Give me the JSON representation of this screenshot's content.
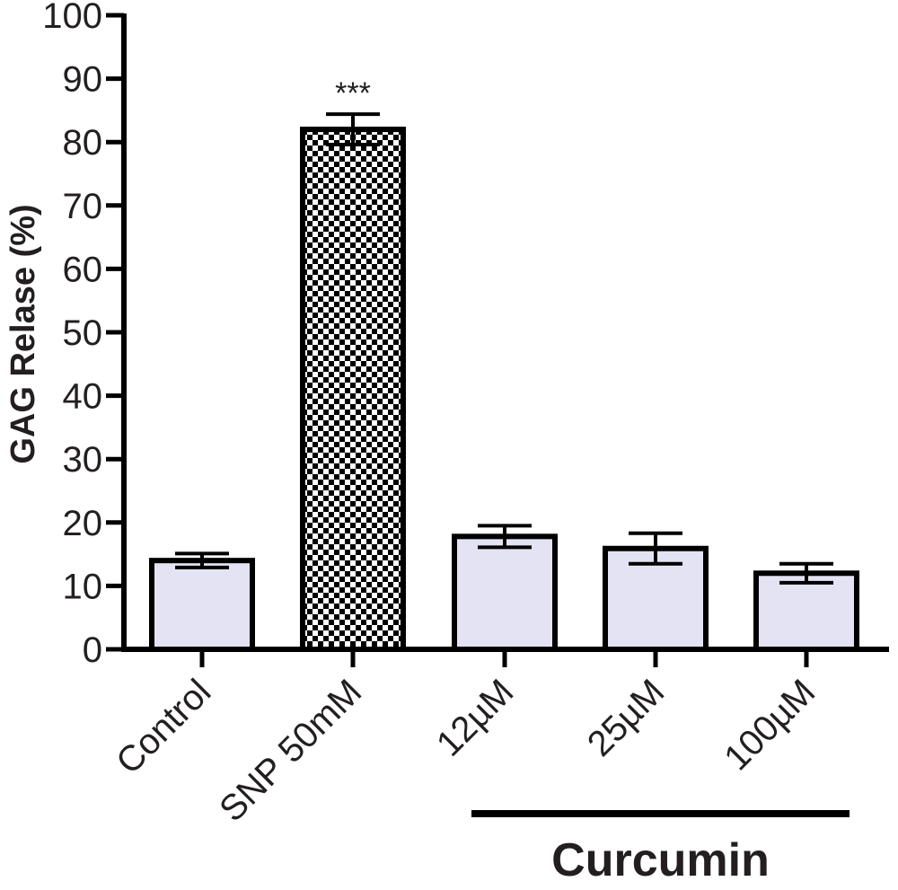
{
  "chart_data": {
    "type": "bar",
    "categories": [
      "Control",
      "SNP 50mM",
      "12µM",
      "25µM",
      "100µM"
    ],
    "values": [
      14,
      82,
      17.8,
      15.9,
      12
    ],
    "errors": [
      1.1,
      2.4,
      1.7,
      2.4,
      1.5
    ],
    "patterns": [
      "solid",
      "checkerboard",
      "solid",
      "solid",
      "solid"
    ],
    "annotations": [
      {
        "category": "SNP 50mM",
        "text": "***"
      }
    ],
    "ylabel": "GAG Relase (%)",
    "xlabel": "",
    "ylim": [
      0,
      100
    ],
    "yticks": [
      "0",
      "10",
      "20",
      "30",
      "40",
      "50",
      "60",
      "70",
      "80",
      "90",
      "100"
    ],
    "group": {
      "label": "Curcumin",
      "categories": [
        "12µM",
        "25µM",
        "100µM"
      ]
    },
    "colors": {
      "bar_fill": "#e3e3f3",
      "bar_stroke": "#000000",
      "axis": "#000000",
      "pattern_dark": "#000000",
      "pattern_light": "#ffffff"
    },
    "grid": false,
    "legend": "none"
  }
}
